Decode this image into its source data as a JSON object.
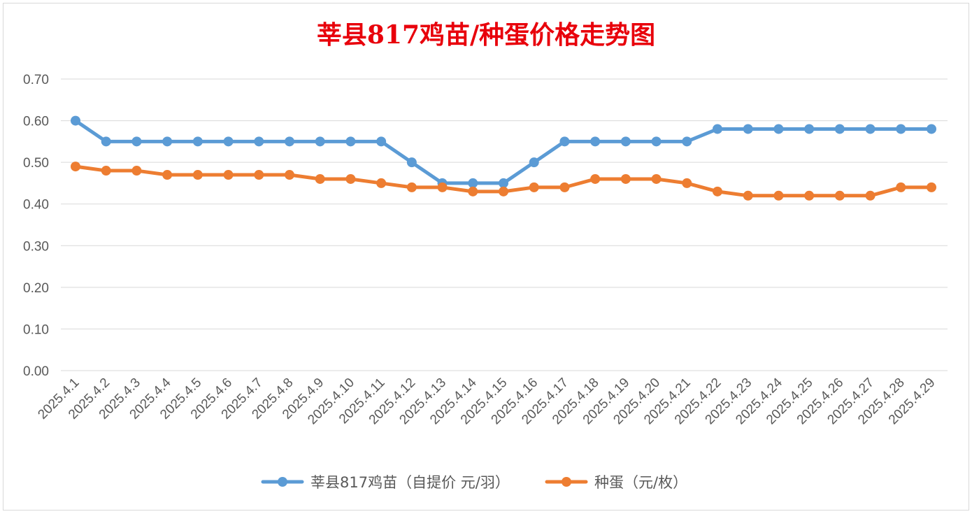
{
  "chart_data": {
    "type": "line",
    "title": "莘县817鸡苗/种蛋价格走势图",
    "categories": [
      "2025.4.1",
      "2025.4.2",
      "2025.4.3",
      "2025.4.4",
      "2025.4.5",
      "2025.4.6",
      "2025.4.7",
      "2025.4.8",
      "2025.4.9",
      "2025.4.10",
      "2025.4.11",
      "2025.4.12",
      "2025.4.13",
      "2025.4.14",
      "2025.4.15",
      "2025.4.16",
      "2025.4.17",
      "2025.4.18",
      "2025.4.19",
      "2025.4.20",
      "2025.4.21",
      "2025.4.22",
      "2025.4.23",
      "2025.4.24",
      "2025.4.25",
      "2025.4.26",
      "2025.4.27",
      "2025.4.28",
      "2025.4.29"
    ],
    "series": [
      {
        "name": "莘县817鸡苗（自提价 元/羽）",
        "color": "#5b9bd5",
        "values": [
          0.6,
          0.55,
          0.55,
          0.55,
          0.55,
          0.55,
          0.55,
          0.55,
          0.55,
          0.55,
          0.55,
          0.5,
          0.45,
          0.45,
          0.45,
          0.5,
          0.55,
          0.55,
          0.55,
          0.55,
          0.55,
          0.58,
          0.58,
          0.58,
          0.58,
          0.58,
          0.58,
          0.58,
          0.58
        ]
      },
      {
        "name": "种蛋（元/枚）",
        "color": "#ed7d31",
        "values": [
          0.49,
          0.48,
          0.48,
          0.47,
          0.47,
          0.47,
          0.47,
          0.47,
          0.46,
          0.46,
          0.45,
          0.44,
          0.44,
          0.43,
          0.43,
          0.44,
          0.44,
          0.46,
          0.46,
          0.46,
          0.45,
          0.43,
          0.42,
          0.42,
          0.42,
          0.42,
          0.42,
          0.44,
          0.44
        ]
      }
    ],
    "ylim": [
      0,
      0.7
    ],
    "yticks": [
      "0.00",
      "0.10",
      "0.20",
      "0.30",
      "0.40",
      "0.50",
      "0.60",
      "0.70"
    ],
    "grid": true,
    "legend": "bottom"
  }
}
